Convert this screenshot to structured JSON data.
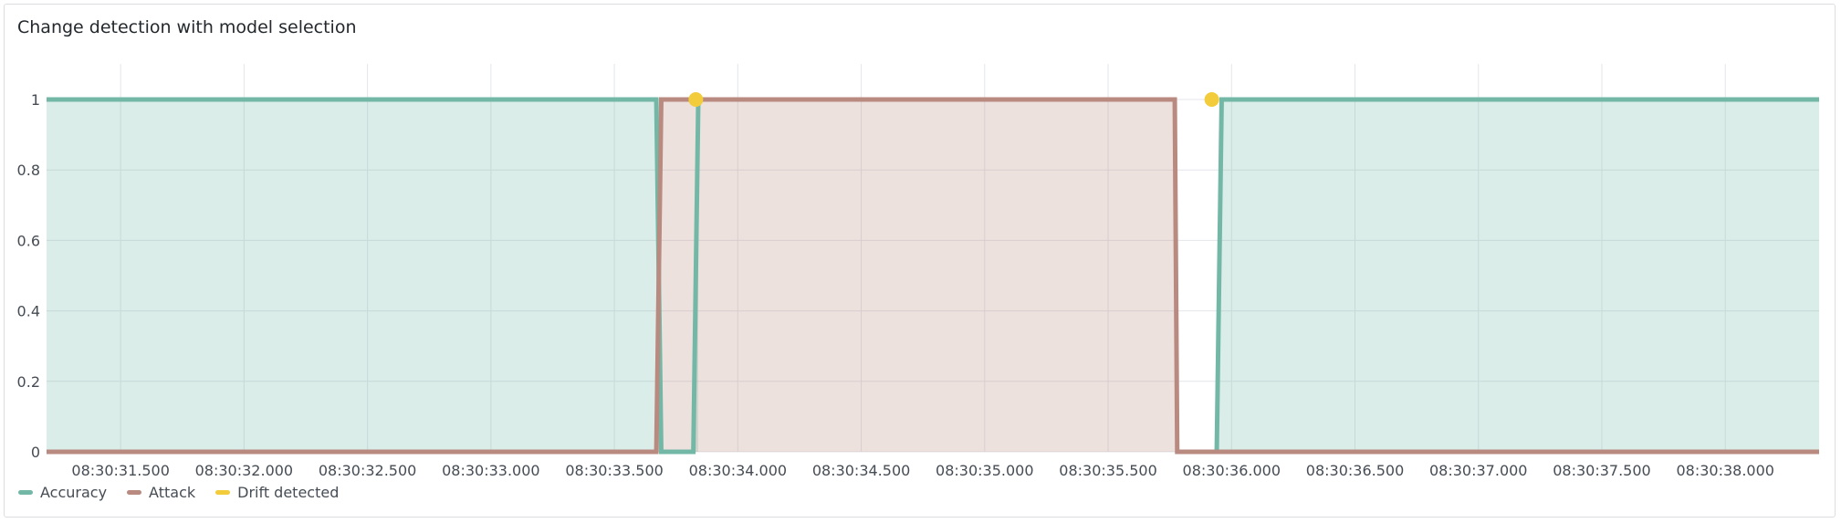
{
  "panel": {
    "title": "Change detection with model selection"
  },
  "chart_data": {
    "type": "line",
    "title": "Change detection with model selection",
    "x_ticks": [
      "08:30:31.500",
      "08:30:32.000",
      "08:30:32.500",
      "08:30:33.000",
      "08:30:33.500",
      "08:30:34.000",
      "08:30:34.500",
      "08:30:35.000",
      "08:30:35.500",
      "08:30:36.000",
      "08:30:36.500",
      "08:30:37.000",
      "08:30:37.500",
      "08:30:38.000"
    ],
    "x_range": [
      "08:30:31.200",
      "08:30:38.380"
    ],
    "y_ticks": [
      "0",
      "0.2",
      "0.4",
      "0.6",
      "0.8",
      "1"
    ],
    "ylim": [
      0,
      1
    ],
    "grid": true,
    "legend_position": "bottom-left",
    "series": [
      {
        "name": "Accuracy",
        "color": "#73b8a6",
        "fill": true,
        "points": [
          [
            "08:30:31.200",
            1
          ],
          [
            "08:30:33.670",
            1
          ],
          [
            "08:30:33.690",
            0
          ],
          [
            "08:30:33.820",
            0
          ],
          [
            "08:30:33.840",
            1
          ],
          [
            "08:30:33.840",
            null
          ],
          [
            "08:30:35.940",
            0
          ],
          [
            "08:30:35.960",
            1
          ],
          [
            "08:30:38.380",
            1
          ]
        ]
      },
      {
        "name": "Attack",
        "color": "#b88a80",
        "fill": true,
        "points": [
          [
            "08:30:31.200",
            0
          ],
          [
            "08:30:33.670",
            0
          ],
          [
            "08:30:33.690",
            1
          ],
          [
            "08:30:35.770",
            1
          ],
          [
            "08:30:35.780",
            0
          ],
          [
            "08:30:38.380",
            0
          ]
        ]
      },
      {
        "name": "Drift detected",
        "color": "#f2cc3a",
        "type": "scatter",
        "points": [
          [
            "08:30:33.830",
            1
          ],
          [
            "08:30:35.920",
            1
          ]
        ]
      }
    ]
  }
}
